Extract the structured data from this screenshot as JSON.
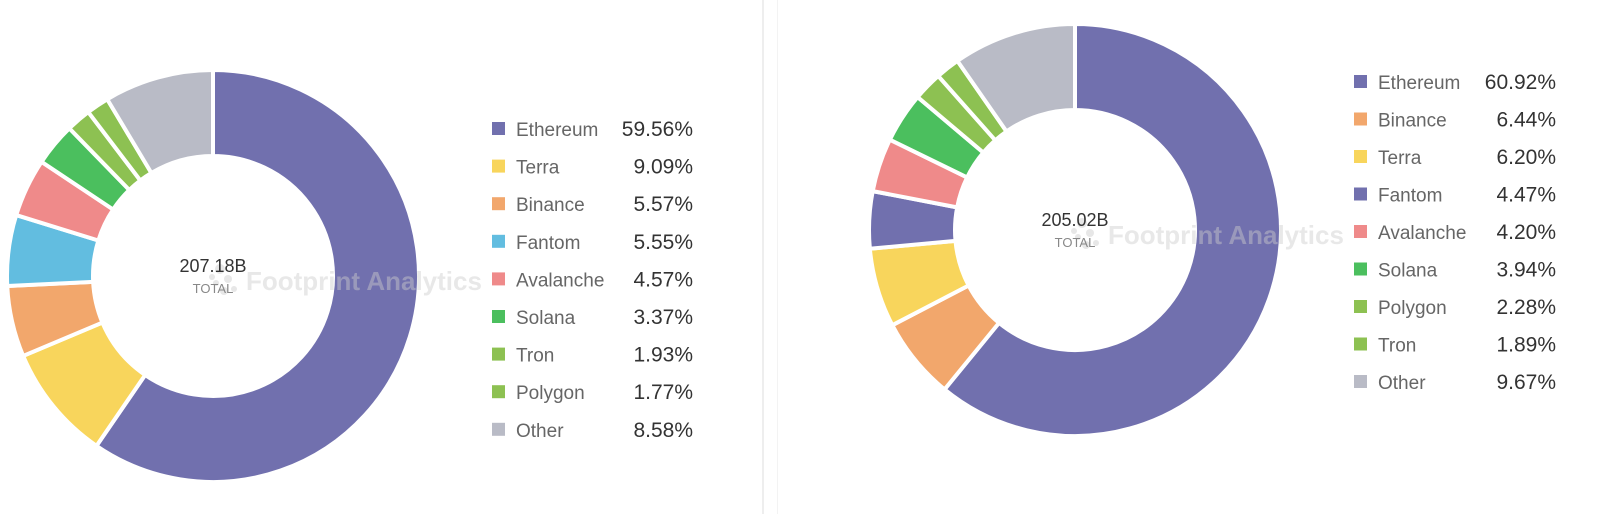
{
  "chart_data": [
    {
      "type": "pie",
      "center": {
        "value": "207.18B",
        "label": "TOTAL"
      },
      "watermark": "Footprint Analytics",
      "slices": [
        {
          "name": "Ethereum",
          "value": 59.56,
          "label": "59.56%",
          "color": "#7170ae"
        },
        {
          "name": "Terra",
          "value": 9.09,
          "label": "9.09%",
          "color": "#f8d55c"
        },
        {
          "name": "Binance",
          "value": 5.57,
          "label": "5.57%",
          "color": "#f2a76c"
        },
        {
          "name": "Fantom",
          "value": 5.55,
          "label": "5.55%",
          "color": "#62bde0"
        },
        {
          "name": "Avalanche",
          "value": 4.57,
          "label": "4.57%",
          "color": "#ef8a8a"
        },
        {
          "name": "Solana",
          "value": 3.37,
          "label": "3.37%",
          "color": "#4bbf5e"
        },
        {
          "name": "Tron",
          "value": 1.93,
          "label": "1.93%",
          "color": "#8dc152"
        },
        {
          "name": "Polygon",
          "value": 1.77,
          "label": "1.77%",
          "color": "#8dc152"
        },
        {
          "name": "Other",
          "value": 8.58,
          "label": "8.58%",
          "color": "#b9bbc6"
        }
      ],
      "legend_position": "right"
    },
    {
      "type": "pie",
      "center": {
        "value": "205.02B",
        "label": "TOTAL"
      },
      "watermark": "Footprint Analytics",
      "slices": [
        {
          "name": "Ethereum",
          "value": 60.92,
          "label": "60.92%",
          "color": "#7170ae"
        },
        {
          "name": "Binance",
          "value": 6.44,
          "label": "6.44%",
          "color": "#f2a76c"
        },
        {
          "name": "Terra",
          "value": 6.2,
          "label": "6.20%",
          "color": "#f8d55c"
        },
        {
          "name": "Fantom",
          "value": 4.47,
          "label": "4.47%",
          "color": "#7170ae"
        },
        {
          "name": "Avalanche",
          "value": 4.2,
          "label": "4.20%",
          "color": "#ef8a8a"
        },
        {
          "name": "Solana",
          "value": 3.94,
          "label": "3.94%",
          "color": "#4bbf5e"
        },
        {
          "name": "Polygon",
          "value": 2.28,
          "label": "2.28%",
          "color": "#8dc152"
        },
        {
          "name": "Tron",
          "value": 1.89,
          "label": "1.89%",
          "color": "#8dc152"
        },
        {
          "name": "Other",
          "value": 9.67,
          "label": "9.67%",
          "color": "#b9bbc6"
        }
      ],
      "legend_position": "right"
    }
  ]
}
